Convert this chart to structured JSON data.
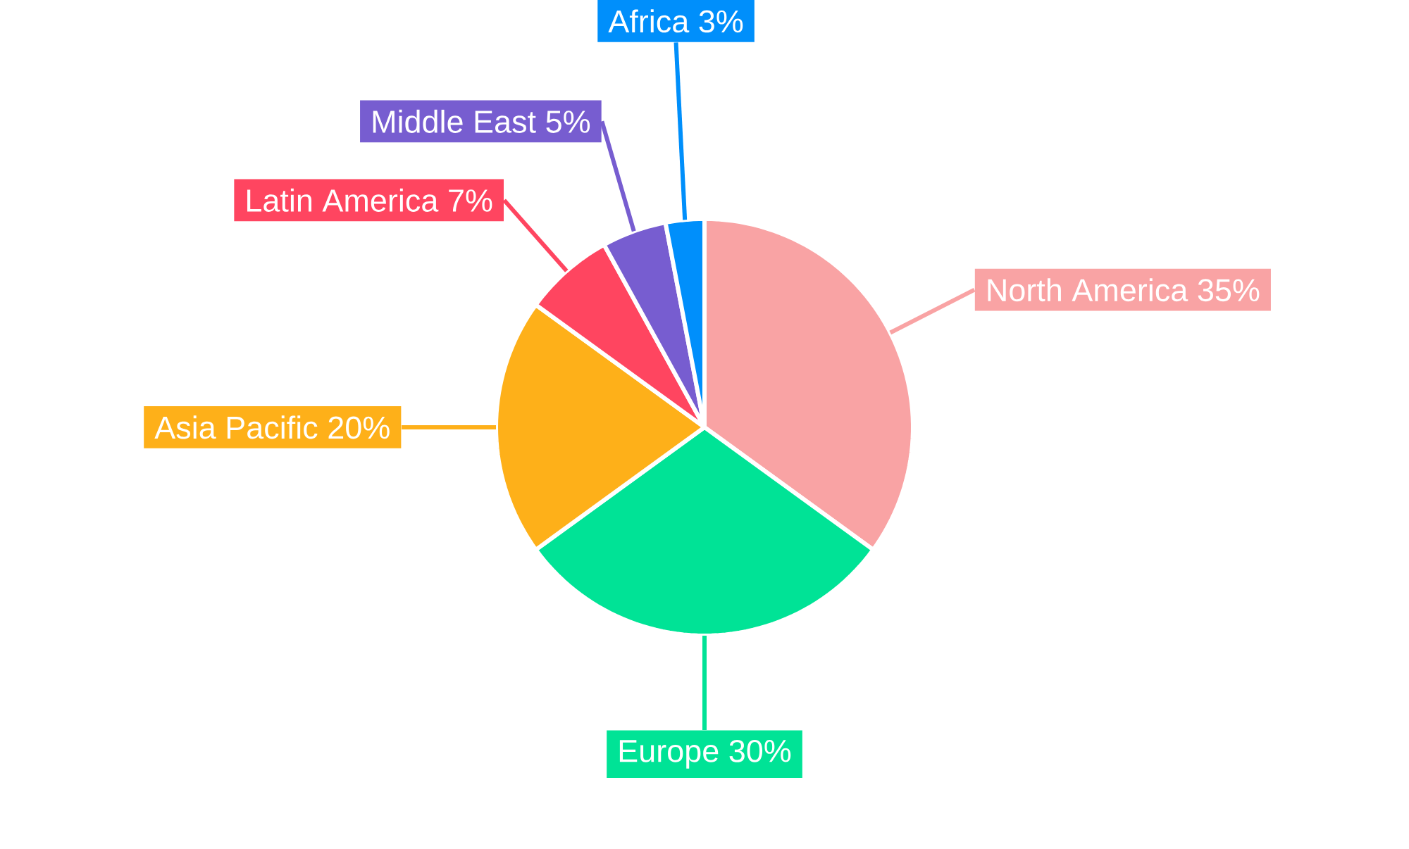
{
  "chart_data": {
    "type": "pie",
    "categories": [
      "North America",
      "Europe",
      "Asia Pacific",
      "Latin America",
      "Middle East",
      "Africa"
    ],
    "values": [
      35,
      30,
      20,
      7,
      5,
      3
    ],
    "value_labels": [
      "35%",
      "30%",
      "20%",
      "7%",
      "5%",
      "3%"
    ],
    "colors": [
      "#f9a3a4",
      "#00e396",
      "#feb019",
      "#ff4560",
      "#775dd0",
      "#008ffb"
    ]
  }
}
